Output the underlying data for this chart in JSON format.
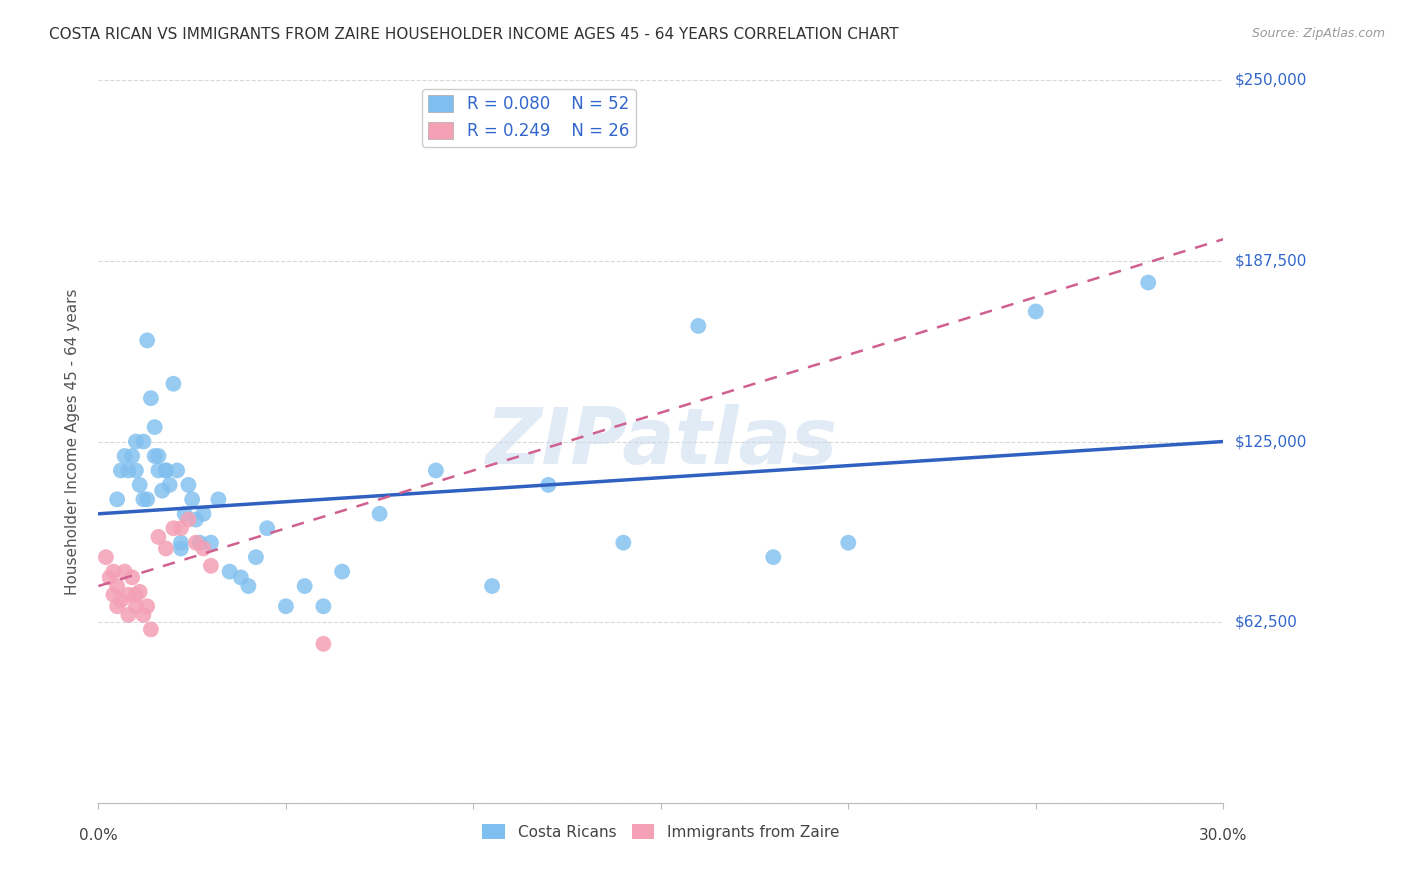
{
  "title": "COSTA RICAN VS IMMIGRANTS FROM ZAIRE HOUSEHOLDER INCOME AGES 45 - 64 YEARS CORRELATION CHART",
  "source": "Source: ZipAtlas.com",
  "ylabel": "Householder Income Ages 45 - 64 years",
  "xlim": [
    0.0,
    0.3
  ],
  "ylim": [
    0,
    250000
  ],
  "yticks": [
    0,
    62500,
    125000,
    187500,
    250000
  ],
  "xticks": [
    0.0,
    0.05,
    0.1,
    0.15,
    0.2,
    0.25,
    0.3
  ],
  "background_color": "#ffffff",
  "grid_color": "#d0d0d0",
  "watermark": "ZIPatlas",
  "legend_R_blue": "0.080",
  "legend_N_blue": "52",
  "legend_R_pink": "0.249",
  "legend_N_pink": "26",
  "blue_color": "#7fbfef",
  "pink_color": "#f4a0b5",
  "trend_blue_color": "#3060c0",
  "trend_pink_color": "#d06090",
  "label_color": "#3366cc",
  "costa_rican_label": "Costa Ricans",
  "zaire_label": "Immigrants from Zaire",
  "blue_scatter_x": [
    0.005,
    0.006,
    0.007,
    0.008,
    0.009,
    0.01,
    0.01,
    0.011,
    0.012,
    0.012,
    0.013,
    0.013,
    0.014,
    0.015,
    0.015,
    0.016,
    0.016,
    0.017,
    0.018,
    0.018,
    0.019,
    0.02,
    0.021,
    0.022,
    0.022,
    0.023,
    0.024,
    0.025,
    0.026,
    0.027,
    0.028,
    0.03,
    0.032,
    0.035,
    0.038,
    0.04,
    0.042,
    0.045,
    0.05,
    0.055,
    0.06,
    0.065,
    0.075,
    0.09,
    0.105,
    0.12,
    0.14,
    0.16,
    0.18,
    0.2,
    0.25,
    0.28
  ],
  "blue_scatter_y": [
    105000,
    115000,
    120000,
    115000,
    120000,
    115000,
    125000,
    110000,
    105000,
    125000,
    160000,
    105000,
    140000,
    130000,
    120000,
    115000,
    120000,
    108000,
    115000,
    115000,
    110000,
    145000,
    115000,
    90000,
    88000,
    100000,
    110000,
    105000,
    98000,
    90000,
    100000,
    90000,
    105000,
    80000,
    78000,
    75000,
    85000,
    95000,
    68000,
    75000,
    68000,
    80000,
    100000,
    115000,
    75000,
    110000,
    90000,
    165000,
    85000,
    90000,
    170000,
    180000
  ],
  "pink_scatter_x": [
    0.002,
    0.003,
    0.004,
    0.004,
    0.005,
    0.005,
    0.006,
    0.007,
    0.008,
    0.008,
    0.009,
    0.01,
    0.01,
    0.011,
    0.012,
    0.013,
    0.014,
    0.016,
    0.018,
    0.02,
    0.022,
    0.024,
    0.026,
    0.028,
    0.03,
    0.06
  ],
  "pink_scatter_y": [
    85000,
    78000,
    72000,
    80000,
    75000,
    68000,
    70000,
    80000,
    72000,
    65000,
    78000,
    72000,
    68000,
    73000,
    65000,
    68000,
    60000,
    92000,
    88000,
    95000,
    95000,
    98000,
    90000,
    88000,
    82000,
    55000
  ]
}
